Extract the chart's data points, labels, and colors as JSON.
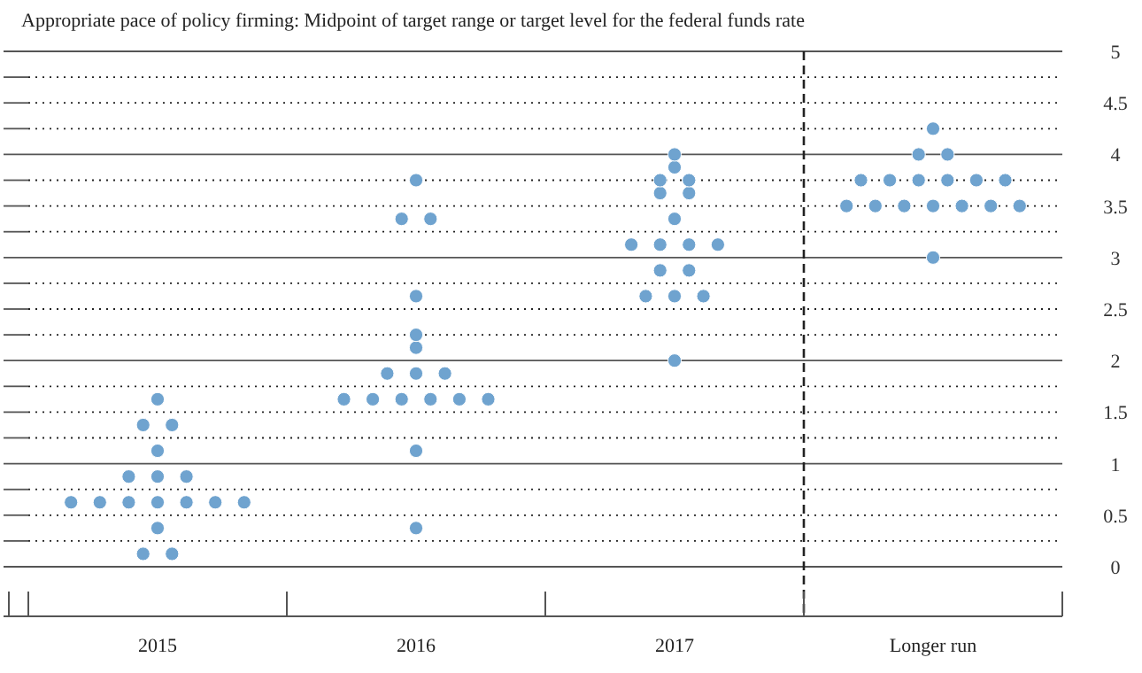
{
  "chart_data": {
    "type": "scatter",
    "title": "Appropriate pace of policy firming: Midpoint of target range or target level for the federal funds rate",
    "categories": [
      "2015",
      "2016",
      "2017",
      "Longer run"
    ],
    "series": [
      {
        "color": "#6fa3cf",
        "values": [
          0.125,
          0.375,
          2.0,
          3.0
        ]
      },
      {
        "color": "#6fa3cf",
        "values": [
          0.125,
          1.125,
          2.625,
          3.5
        ]
      },
      {
        "color": "#6fa3cf",
        "values": [
          0.375,
          1.625,
          2.625,
          3.5
        ]
      },
      {
        "color": "#6fa3cf",
        "values": [
          0.625,
          1.625,
          2.625,
          3.5
        ]
      },
      {
        "color": "#6fa3cf",
        "values": [
          0.625,
          1.625,
          2.875,
          3.5
        ]
      },
      {
        "color": "#6fa3cf",
        "values": [
          0.625,
          1.625,
          2.875,
          3.5
        ]
      },
      {
        "color": "#6fa3cf",
        "values": [
          0.625,
          1.625,
          3.125,
          3.5
        ]
      },
      {
        "color": "#6fa3cf",
        "values": [
          0.625,
          1.625,
          3.125,
          3.5
        ]
      },
      {
        "color": "#6fa3cf",
        "values": [
          0.625,
          1.875,
          3.125,
          3.75
        ]
      },
      {
        "color": "#6fa3cf",
        "values": [
          0.625,
          1.875,
          3.125,
          3.75
        ]
      },
      {
        "color": "#6fa3cf",
        "values": [
          0.875,
          1.875,
          3.375,
          3.75
        ]
      },
      {
        "color": "#6fa3cf",
        "values": [
          0.875,
          2.125,
          3.625,
          3.75
        ]
      },
      {
        "color": "#6fa3cf",
        "values": [
          0.875,
          2.25,
          3.625,
          3.75
        ]
      },
      {
        "color": "#6fa3cf",
        "values": [
          1.125,
          2.625,
          3.75,
          3.75
        ]
      },
      {
        "color": "#6fa3cf",
        "values": [
          1.375,
          3.375,
          3.75,
          4.0
        ]
      },
      {
        "color": "#6fa3cf",
        "values": [
          1.375,
          3.375,
          3.875,
          4.0
        ]
      },
      {
        "color": "#6fa3cf",
        "values": [
          1.625,
          3.75,
          4.0,
          4.25
        ]
      }
    ],
    "ylim": [
      0,
      5
    ],
    "yticks": [
      0,
      {
        "value": 0.25,
        "label": null
      },
      0.5,
      {
        "value": 0.75,
        "label": null
      },
      1,
      {
        "value": 1.25,
        "label": null
      },
      1.5,
      {
        "value": 1.75,
        "label": null
      },
      2,
      {
        "value": 2.25,
        "label": null
      },
      2.5,
      {
        "value": 2.75,
        "label": null
      },
      3,
      {
        "value": 3.25,
        "label": null
      },
      3.5,
      {
        "value": 3.75,
        "label": null
      },
      4,
      {
        "value": 4.25,
        "label": null
      },
      4.5,
      {
        "value": 4.75,
        "label": null
      },
      5
    ],
    "grid": "y",
    "marker": "circle"
  }
}
